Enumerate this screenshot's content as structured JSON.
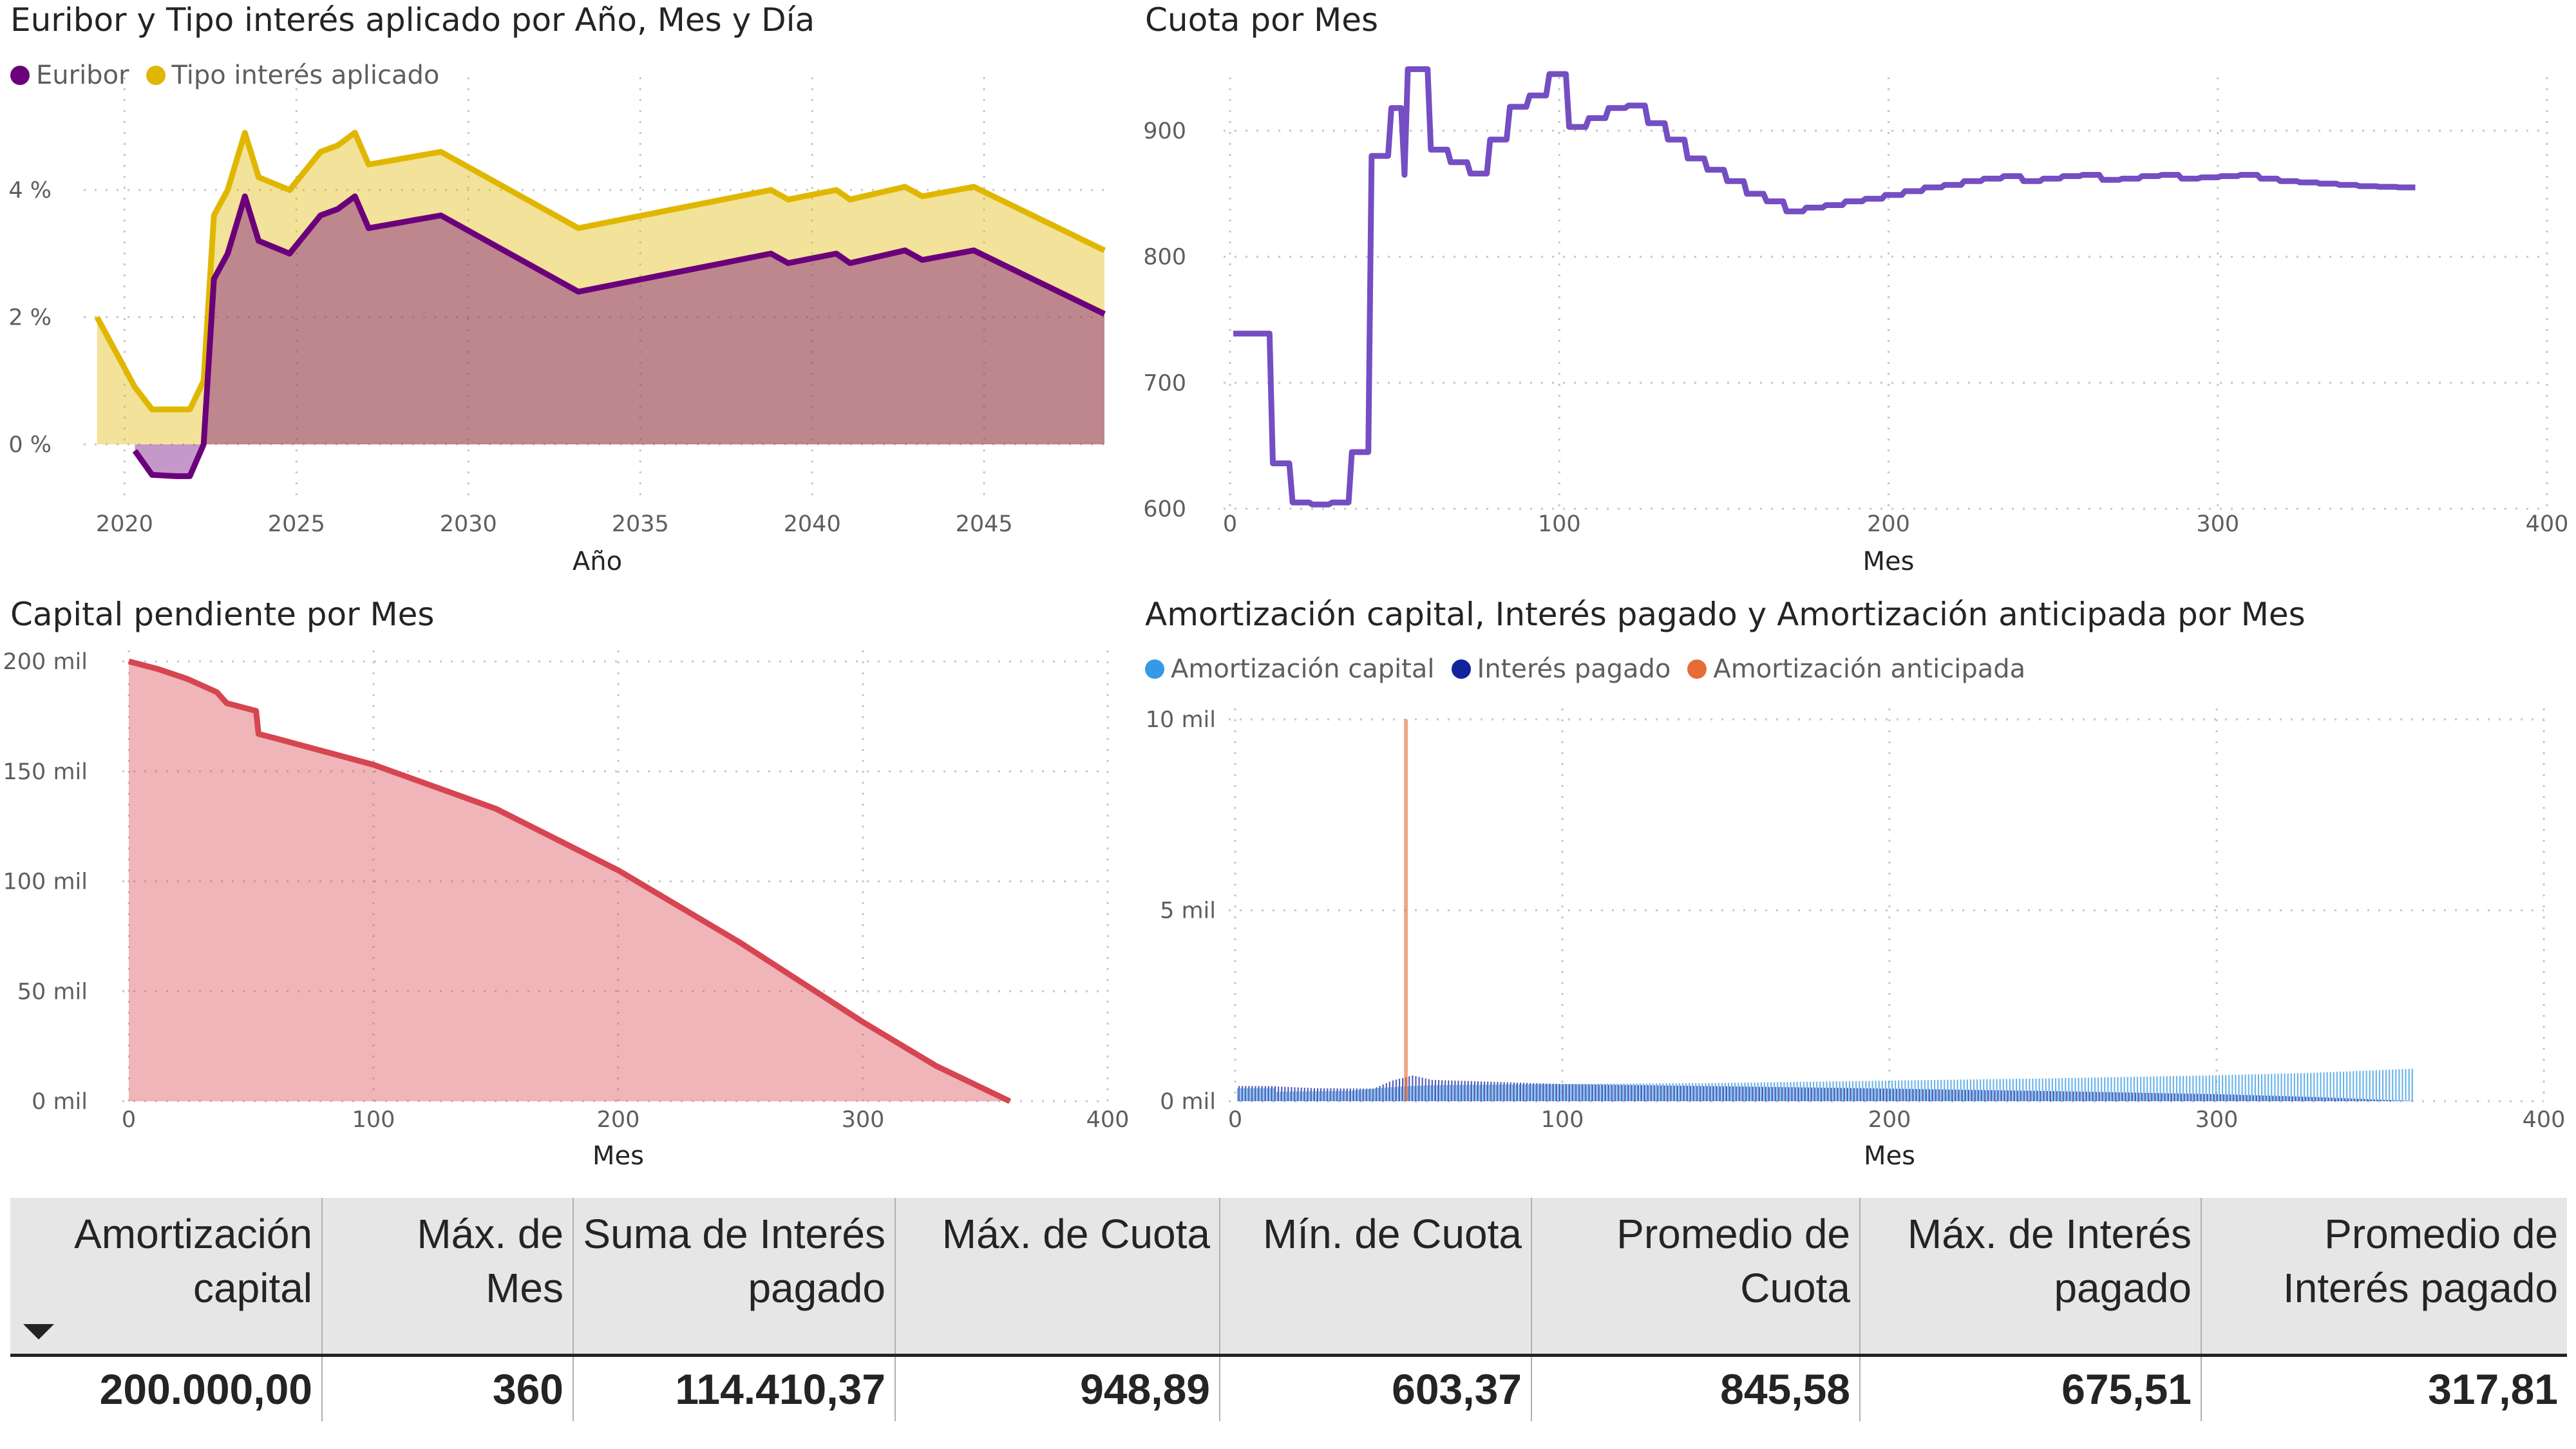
{
  "colors": {
    "euribor": "#6b007b",
    "tipo": "#e0b700",
    "cuota": "#744ec2",
    "capital": "#d64550",
    "amort_capital": "#3599e6",
    "interes_pagado": "#12239e",
    "amort_anticipada": "#e66c37"
  },
  "chart_data": [
    {
      "type": "area",
      "title": "Euribor y Tipo interés aplicado por Año, Mes y Día",
      "xlabel": "Año",
      "ylabel": "",
      "xlim": [
        2019,
        2049
      ],
      "ylim": [
        -1,
        5
      ],
      "x_ticks": [
        "2020",
        "2025",
        "2030",
        "2035",
        "2040",
        "2045"
      ],
      "y_ticks": [
        "0 %",
        "2 %",
        "4 %"
      ],
      "grid": true,
      "legend_position": "top-left",
      "series": [
        {
          "name": "Euribor",
          "color": "#6b007b",
          "points": [
            [
              2020.3,
              -0.1
            ],
            [
              2020.8,
              -0.48
            ],
            [
              2021.5,
              -0.5
            ],
            [
              2021.9,
              -0.5
            ],
            [
              2022.3,
              0.0
            ],
            [
              2022.6,
              2.6
            ],
            [
              2023.0,
              3.0
            ],
            [
              2023.5,
              3.9
            ],
            [
              2023.9,
              3.2
            ],
            [
              2024.8,
              3.0
            ],
            [
              2025.7,
              3.6
            ],
            [
              2026.2,
              3.7
            ],
            [
              2026.7,
              3.9
            ],
            [
              2027.1,
              3.4
            ],
            [
              2029.2,
              3.6
            ],
            [
              2033.2,
              2.4
            ],
            [
              2038.8,
              3.0
            ],
            [
              2039.3,
              2.85
            ],
            [
              2040.7,
              3.0
            ],
            [
              2041.1,
              2.85
            ],
            [
              2042.7,
              3.05
            ],
            [
              2043.2,
              2.9
            ],
            [
              2044.7,
              3.05
            ],
            [
              2046.6,
              2.55
            ],
            [
              2048.5,
              2.05
            ]
          ]
        },
        {
          "name": "Tipo interés aplicado",
          "color": "#e0b700",
          "points": [
            [
              2019.2,
              2.0
            ],
            [
              2020.3,
              0.9
            ],
            [
              2020.8,
              0.55
            ],
            [
              2021.9,
              0.55
            ],
            [
              2022.3,
              1.0
            ],
            [
              2022.6,
              3.6
            ],
            [
              2023.0,
              4.0
            ],
            [
              2023.5,
              4.9
            ],
            [
              2023.9,
              4.2
            ],
            [
              2024.8,
              4.0
            ],
            [
              2025.7,
              4.6
            ],
            [
              2026.2,
              4.7
            ],
            [
              2026.7,
              4.9
            ],
            [
              2027.1,
              4.4
            ],
            [
              2029.2,
              4.6
            ],
            [
              2033.2,
              3.4
            ],
            [
              2038.8,
              4.0
            ],
            [
              2039.3,
              3.85
            ],
            [
              2040.7,
              4.0
            ],
            [
              2041.1,
              3.85
            ],
            [
              2042.7,
              4.05
            ],
            [
              2043.2,
              3.9
            ],
            [
              2044.7,
              4.05
            ],
            [
              2046.6,
              3.55
            ],
            [
              2048.5,
              3.05
            ]
          ]
        }
      ]
    },
    {
      "type": "line",
      "title": "Cuota por Mes",
      "xlabel": "Mes",
      "ylabel": "",
      "xlim": [
        0,
        400
      ],
      "ylim": [
        600,
        950
      ],
      "x_ticks": [
        "0",
        "100",
        "200",
        "300",
        "400"
      ],
      "y_ticks": [
        "600",
        "700",
        "800",
        "900"
      ],
      "grid": true,
      "series": [
        {
          "name": "Cuota",
          "color": "#744ec2",
          "steps": [
            [
              1,
              739
            ],
            [
              12,
              739
            ],
            [
              13,
              636
            ],
            [
              18,
              636
            ],
            [
              19,
              605
            ],
            [
              24,
              605
            ],
            [
              25,
              603.4
            ],
            [
              30,
              603.4
            ],
            [
              31,
              605
            ],
            [
              36,
              605
            ],
            [
              37,
              645
            ],
            [
              42,
              645
            ],
            [
              43,
              880
            ],
            [
              48,
              880
            ],
            [
              49,
              918
            ],
            [
              52,
              918
            ],
            [
              53,
              865
            ],
            [
              54,
              948.9
            ],
            [
              60,
              948.9
            ],
            [
              61,
              885
            ],
            [
              66,
              885
            ],
            [
              67,
              875
            ],
            [
              72,
              875
            ],
            [
              73,
              866
            ],
            [
              78,
              866
            ],
            [
              79,
              893
            ],
            [
              84,
              893
            ],
            [
              85,
              919
            ],
            [
              90,
              919
            ],
            [
              91,
              928
            ],
            [
              96,
              928
            ],
            [
              97,
              945
            ],
            [
              102,
              945
            ],
            [
              103,
              903
            ],
            [
              108,
              903
            ],
            [
              109,
              910
            ],
            [
              114,
              910
            ],
            [
              115,
              918
            ],
            [
              120,
              918
            ],
            [
              121,
              920
            ],
            [
              126,
              920
            ],
            [
              127,
              906
            ],
            [
              132,
              906
            ],
            [
              133,
              893
            ],
            [
              138,
              893
            ],
            [
              139,
              878
            ],
            [
              144,
              878
            ],
            [
              145,
              869
            ],
            [
              150,
              869
            ],
            [
              151,
              860
            ],
            [
              156,
              860
            ],
            [
              157,
              850
            ],
            [
              162,
              850
            ],
            [
              163,
              844
            ],
            [
              168,
              844
            ],
            [
              169,
              836
            ],
            [
              174,
              836
            ],
            [
              175,
              839
            ],
            [
              180,
              839
            ],
            [
              181,
              841
            ],
            [
              186,
              841
            ],
            [
              187,
              844
            ],
            [
              192,
              844
            ],
            [
              193,
              846
            ],
            [
              198,
              846
            ],
            [
              199,
              849
            ],
            [
              204,
              849
            ],
            [
              205,
              852
            ],
            [
              210,
              852
            ],
            [
              211,
              855
            ],
            [
              216,
              855
            ],
            [
              217,
              857
            ],
            [
              222,
              857
            ],
            [
              223,
              860
            ],
            [
              228,
              860
            ],
            [
              229,
              862
            ],
            [
              234,
              862
            ],
            [
              235,
              864
            ],
            [
              240,
              864
            ],
            [
              241,
              860
            ],
            [
              246,
              860
            ],
            [
              247,
              862
            ],
            [
              252,
              862
            ],
            [
              253,
              864
            ],
            [
              258,
              864
            ],
            [
              259,
              865
            ],
            [
              264,
              865
            ],
            [
              265,
              861
            ],
            [
              270,
              861
            ],
            [
              271,
              862
            ],
            [
              276,
              862
            ],
            [
              277,
              864
            ],
            [
              282,
              864
            ],
            [
              283,
              865
            ],
            [
              288,
              865
            ],
            [
              289,
              862
            ],
            [
              294,
              862
            ],
            [
              295,
              863
            ],
            [
              300,
              863
            ],
            [
              301,
              864
            ],
            [
              306,
              864
            ],
            [
              307,
              865
            ],
            [
              312,
              865
            ],
            [
              313,
              862
            ],
            [
              318,
              862
            ],
            [
              319,
              860
            ],
            [
              324,
              860
            ],
            [
              325,
              859
            ],
            [
              330,
              859
            ],
            [
              331,
              858
            ],
            [
              336,
              858
            ],
            [
              337,
              857
            ],
            [
              342,
              857
            ],
            [
              343,
              856
            ],
            [
              348,
              856
            ],
            [
              349,
              855.5
            ],
            [
              354,
              855.5
            ],
            [
              355,
              855
            ],
            [
              360,
              855
            ]
          ]
        }
      ]
    },
    {
      "type": "area",
      "title": "Capital pendiente por Mes",
      "xlabel": "Mes",
      "ylabel": "",
      "xlim": [
        0,
        400
      ],
      "ylim": [
        0,
        200000
      ],
      "x_ticks": [
        "0",
        "100",
        "200",
        "300",
        "400"
      ],
      "y_ticks": [
        "0 mil",
        "50 mil",
        "100 mil",
        "150 mil",
        "200 mil"
      ],
      "grid": true,
      "series": [
        {
          "name": "Capital pendiente",
          "color": "#d64550",
          "points": [
            [
              0,
              200000
            ],
            [
              12,
              196500
            ],
            [
              24,
              192000
            ],
            [
              36,
              186000
            ],
            [
              40,
              181000
            ],
            [
              52,
              177500
            ],
            [
              53,
              167000
            ],
            [
              60,
              165000
            ],
            [
              100,
              153000
            ],
            [
              150,
              133000
            ],
            [
              200,
              105000
            ],
            [
              250,
              72000
            ],
            [
              300,
              36000
            ],
            [
              330,
              16000
            ],
            [
              360,
              0
            ]
          ]
        }
      ]
    },
    {
      "type": "bar",
      "title": "Amortización capital, Interés pagado y Amortización anticipada por Mes",
      "xlabel": "Mes",
      "ylabel": "",
      "xlim": [
        0,
        400
      ],
      "ylim": [
        0,
        10000
      ],
      "x_ticks": [
        "0",
        "100",
        "200",
        "300",
        "400"
      ],
      "y_ticks": [
        "0 mil",
        "5 mil",
        "10 mil"
      ],
      "grid": true,
      "legend_position": "top-left",
      "series": [
        {
          "name": "Amortización capital",
          "color": "#3599e6",
          "points": [
            [
              1,
              340
            ],
            [
              12,
              345
            ],
            [
              13,
              250
            ],
            [
              24,
              262
            ],
            [
              36,
              272
            ],
            [
              42,
              330
            ],
            [
              48,
              370
            ],
            [
              60,
              420
            ],
            [
              100,
              450
            ],
            [
              150,
              480
            ],
            [
              200,
              540
            ],
            [
              250,
              600
            ],
            [
              300,
              680
            ],
            [
              330,
              745
            ],
            [
              360,
              850
            ]
          ]
        },
        {
          "name": "Interés pagado",
          "color": "#12239e",
          "points": [
            [
              1,
              400
            ],
            [
              12,
              395
            ],
            [
              13,
              385
            ],
            [
              24,
              342
            ],
            [
              36,
              333
            ],
            [
              42,
              330
            ],
            [
              48,
              545
            ],
            [
              54,
              675.5
            ],
            [
              60,
              560
            ],
            [
              100,
              450
            ],
            [
              150,
              390
            ],
            [
              200,
              330
            ],
            [
              250,
              265
            ],
            [
              300,
              185
            ],
            [
              330,
              110
            ],
            [
              360,
              5
            ]
          ]
        },
        {
          "name": "Amortización anticipada",
          "color": "#e66c37",
          "points": [
            [
              52,
              10000
            ]
          ]
        }
      ]
    }
  ],
  "summary_table": {
    "headers": [
      "Amortización capital",
      "Máx. de Mes",
      "Suma de Interés pagado",
      "Máx. de Cuota",
      "Mín. de Cuota",
      "Promedio de Cuota",
      "Máx. de Interés pagado",
      "Promedio de Interés pagado"
    ],
    "values": [
      "200.000,00",
      "360",
      "114.410,37",
      "948,89",
      "603,37",
      "845,58",
      "675,51",
      "317,81"
    ],
    "sort_icon": "sort-descending-icon"
  }
}
